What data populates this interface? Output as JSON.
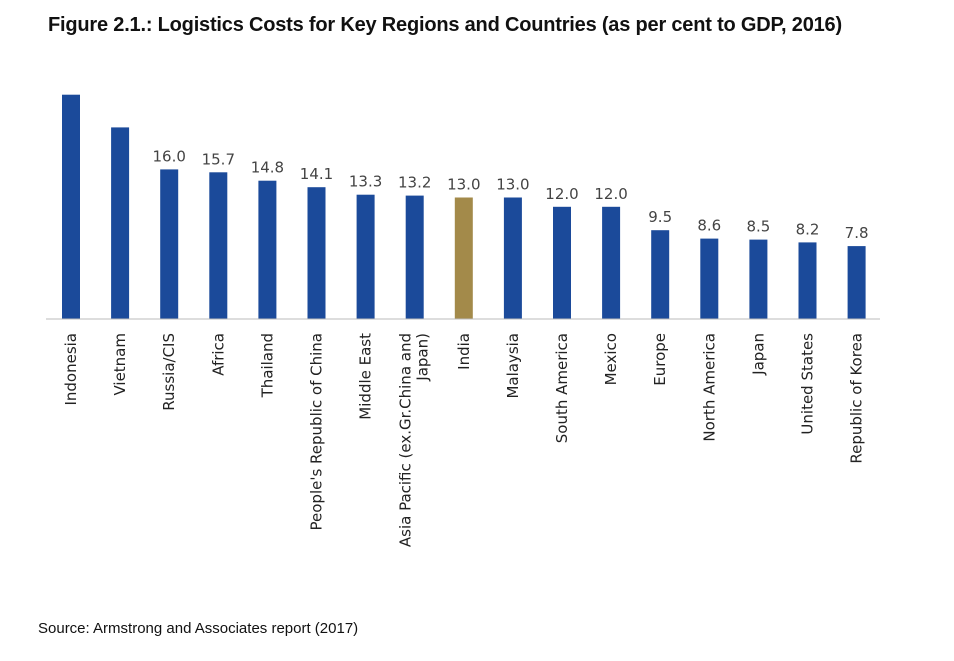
{
  "title": "Figure 2.1.: Logistics Costs for Key Regions and Countries (as per cent to GDP, 2016)",
  "source": "Source: Armstrong and Associates report (2017)",
  "colors": {
    "bar": "#1b4a9a",
    "highlight": "#a38a4a",
    "axis": "#bbbbbb"
  },
  "chart_data": {
    "type": "bar",
    "categories": [
      "Indonesia",
      "Vietnam",
      "Russia/CIS",
      "Africa",
      "Thailand",
      "People's Republic of China",
      "Middle East",
      "Asia Pacific (ex.Gr.China and Japan)",
      "India",
      "Malaysia",
      "South America",
      "Mexico",
      "Europe",
      "North America",
      "Japan",
      "United States",
      "Republic of Korea"
    ],
    "category_labels": [
      [
        "Indonesia"
      ],
      [
        "Vietnam"
      ],
      [
        "Russia/CIS"
      ],
      [
        "Africa"
      ],
      [
        "Thailand"
      ],
      [
        "People's Republic of China"
      ],
      [
        "Middle East"
      ],
      [
        "Asia Pacific (ex.Gr.China and",
        "Japan)"
      ],
      [
        "India"
      ],
      [
        "Malaysia"
      ],
      [
        "South America"
      ],
      [
        "Mexico"
      ],
      [
        "Europe"
      ],
      [
        "North America"
      ],
      [
        "Japan"
      ],
      [
        "United States"
      ],
      [
        "Republic of Korea"
      ]
    ],
    "values": [
      24.0,
      20.5,
      16.0,
      15.7,
      14.8,
      14.1,
      13.3,
      13.2,
      13.0,
      13.0,
      12.0,
      12.0,
      9.5,
      8.6,
      8.5,
      8.2,
      7.8
    ],
    "data_labels": [
      null,
      null,
      "16.0",
      "15.7",
      "14.8",
      "14.1",
      "13.3",
      "13.2",
      "13.0",
      "13.0",
      "12.0",
      "12.0",
      "9.5",
      "8.6",
      "8.5",
      "8.2",
      "7.8"
    ],
    "highlight": "India",
    "ylim": [
      0,
      24.5
    ],
    "grid": false
  }
}
